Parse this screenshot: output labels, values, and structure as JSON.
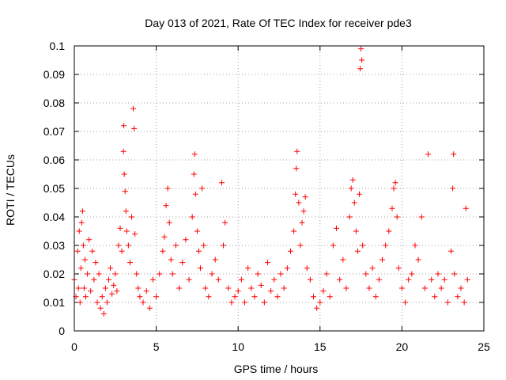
{
  "chart_data": {
    "type": "scatter",
    "title": "Day 013 of 2021, Rate Of TEC Index for receiver pde3",
    "xlabel": "GPS time / hours",
    "ylabel": "ROTI / TECUs",
    "xlim": [
      0,
      25
    ],
    "ylim": [
      0,
      0.1
    ],
    "x_ticks": [
      "0",
      "5",
      "10",
      "15",
      "20",
      "25"
    ],
    "y_ticks": [
      "0",
      "0.01",
      "0.02",
      "0.03",
      "0.04",
      "0.05",
      "0.06",
      "0.07",
      "0.08",
      "0.09",
      "0.1"
    ],
    "grid": true,
    "legend": "none",
    "marker": "+",
    "series_color": "#ff0000",
    "series": [
      {
        "values": [
          [
            0.0,
            0.018
          ],
          [
            0.1,
            0.012
          ],
          [
            0.2,
            0.028
          ],
          [
            0.25,
            0.015
          ],
          [
            0.3,
            0.035
          ],
          [
            0.35,
            0.01
          ],
          [
            0.4,
            0.022
          ],
          [
            0.45,
            0.038
          ],
          [
            0.5,
            0.042
          ],
          [
            0.55,
            0.03
          ],
          [
            0.6,
            0.015
          ],
          [
            0.65,
            0.025
          ],
          [
            0.7,
            0.012
          ],
          [
            0.8,
            0.02
          ],
          [
            0.9,
            0.032
          ],
          [
            1.0,
            0.014
          ],
          [
            1.1,
            0.028
          ],
          [
            1.2,
            0.018
          ],
          [
            1.3,
            0.024
          ],
          [
            1.4,
            0.01
          ],
          [
            1.5,
            0.02
          ],
          [
            1.6,
            0.008
          ],
          [
            1.7,
            0.012
          ],
          [
            1.8,
            0.006
          ],
          [
            1.9,
            0.015
          ],
          [
            2.0,
            0.01
          ],
          [
            2.1,
            0.018
          ],
          [
            2.2,
            0.022
          ],
          [
            2.3,
            0.013
          ],
          [
            2.4,
            0.016
          ],
          [
            2.5,
            0.02
          ],
          [
            2.6,
            0.014
          ],
          [
            2.7,
            0.03
          ],
          [
            2.8,
            0.036
          ],
          [
            2.9,
            0.028
          ],
          [
            3.0,
            0.063
          ],
          [
            3.02,
            0.072
          ],
          [
            3.05,
            0.055
          ],
          [
            3.1,
            0.049
          ],
          [
            3.15,
            0.042
          ],
          [
            3.2,
            0.035
          ],
          [
            3.3,
            0.03
          ],
          [
            3.4,
            0.024
          ],
          [
            3.5,
            0.04
          ],
          [
            3.6,
            0.078
          ],
          [
            3.65,
            0.071
          ],
          [
            3.7,
            0.034
          ],
          [
            3.8,
            0.02
          ],
          [
            3.9,
            0.015
          ],
          [
            4.0,
            0.012
          ],
          [
            4.2,
            0.01
          ],
          [
            4.4,
            0.014
          ],
          [
            4.6,
            0.008
          ],
          [
            4.8,
            0.018
          ],
          [
            5.0,
            0.012
          ],
          [
            5.2,
            0.02
          ],
          [
            5.4,
            0.028
          ],
          [
            5.5,
            0.033
          ],
          [
            5.6,
            0.044
          ],
          [
            5.7,
            0.05
          ],
          [
            5.8,
            0.038
          ],
          [
            5.9,
            0.025
          ],
          [
            6.0,
            0.02
          ],
          [
            6.2,
            0.03
          ],
          [
            6.4,
            0.015
          ],
          [
            6.6,
            0.024
          ],
          [
            6.8,
            0.032
          ],
          [
            7.0,
            0.018
          ],
          [
            7.2,
            0.04
          ],
          [
            7.3,
            0.055
          ],
          [
            7.35,
            0.062
          ],
          [
            7.4,
            0.048
          ],
          [
            7.5,
            0.035
          ],
          [
            7.6,
            0.028
          ],
          [
            7.7,
            0.022
          ],
          [
            7.8,
            0.05
          ],
          [
            7.9,
            0.03
          ],
          [
            8.0,
            0.015
          ],
          [
            8.2,
            0.012
          ],
          [
            8.4,
            0.02
          ],
          [
            8.6,
            0.025
          ],
          [
            8.8,
            0.018
          ],
          [
            9.0,
            0.052
          ],
          [
            9.1,
            0.03
          ],
          [
            9.2,
            0.038
          ],
          [
            9.4,
            0.015
          ],
          [
            9.6,
            0.01
          ],
          [
            9.8,
            0.012
          ],
          [
            10.0,
            0.014
          ],
          [
            10.2,
            0.018
          ],
          [
            10.4,
            0.01
          ],
          [
            10.6,
            0.022
          ],
          [
            10.8,
            0.015
          ],
          [
            11.0,
            0.012
          ],
          [
            11.2,
            0.02
          ],
          [
            11.4,
            0.016
          ],
          [
            11.6,
            0.01
          ],
          [
            11.8,
            0.024
          ],
          [
            12.0,
            0.014
          ],
          [
            12.2,
            0.018
          ],
          [
            12.4,
            0.012
          ],
          [
            12.6,
            0.02
          ],
          [
            12.8,
            0.015
          ],
          [
            13.0,
            0.022
          ],
          [
            13.2,
            0.028
          ],
          [
            13.4,
            0.035
          ],
          [
            13.5,
            0.048
          ],
          [
            13.55,
            0.057
          ],
          [
            13.6,
            0.063
          ],
          [
            13.7,
            0.045
          ],
          [
            13.8,
            0.03
          ],
          [
            13.9,
            0.038
          ],
          [
            14.0,
            0.042
          ],
          [
            14.1,
            0.047
          ],
          [
            14.2,
            0.022
          ],
          [
            14.4,
            0.018
          ],
          [
            14.6,
            0.012
          ],
          [
            14.8,
            0.008
          ],
          [
            15.0,
            0.01
          ],
          [
            15.2,
            0.014
          ],
          [
            15.4,
            0.02
          ],
          [
            15.6,
            0.012
          ],
          [
            15.8,
            0.03
          ],
          [
            16.0,
            0.036
          ],
          [
            16.2,
            0.018
          ],
          [
            16.4,
            0.025
          ],
          [
            16.6,
            0.015
          ],
          [
            16.8,
            0.04
          ],
          [
            16.9,
            0.05
          ],
          [
            17.0,
            0.053
          ],
          [
            17.1,
            0.045
          ],
          [
            17.2,
            0.035
          ],
          [
            17.3,
            0.028
          ],
          [
            17.4,
            0.048
          ],
          [
            17.45,
            0.092
          ],
          [
            17.5,
            0.099
          ],
          [
            17.55,
            0.095
          ],
          [
            17.6,
            0.03
          ],
          [
            17.8,
            0.02
          ],
          [
            18.0,
            0.015
          ],
          [
            18.2,
            0.022
          ],
          [
            18.4,
            0.012
          ],
          [
            18.6,
            0.018
          ],
          [
            18.8,
            0.025
          ],
          [
            19.0,
            0.03
          ],
          [
            19.2,
            0.035
          ],
          [
            19.4,
            0.043
          ],
          [
            19.5,
            0.05
          ],
          [
            19.6,
            0.052
          ],
          [
            19.7,
            0.04
          ],
          [
            19.8,
            0.022
          ],
          [
            20.0,
            0.015
          ],
          [
            20.2,
            0.01
          ],
          [
            20.4,
            0.018
          ],
          [
            20.6,
            0.02
          ],
          [
            20.8,
            0.03
          ],
          [
            21.0,
            0.025
          ],
          [
            21.2,
            0.04
          ],
          [
            21.4,
            0.015
          ],
          [
            21.6,
            0.062
          ],
          [
            21.8,
            0.018
          ],
          [
            22.0,
            0.012
          ],
          [
            22.2,
            0.02
          ],
          [
            22.4,
            0.015
          ],
          [
            22.6,
            0.018
          ],
          [
            22.8,
            0.01
          ],
          [
            23.0,
            0.028
          ],
          [
            23.1,
            0.05
          ],
          [
            23.15,
            0.062
          ],
          [
            23.2,
            0.02
          ],
          [
            23.4,
            0.012
          ],
          [
            23.6,
            0.015
          ],
          [
            23.8,
            0.01
          ],
          [
            23.9,
            0.043
          ],
          [
            24.0,
            0.018
          ]
        ]
      }
    ]
  }
}
